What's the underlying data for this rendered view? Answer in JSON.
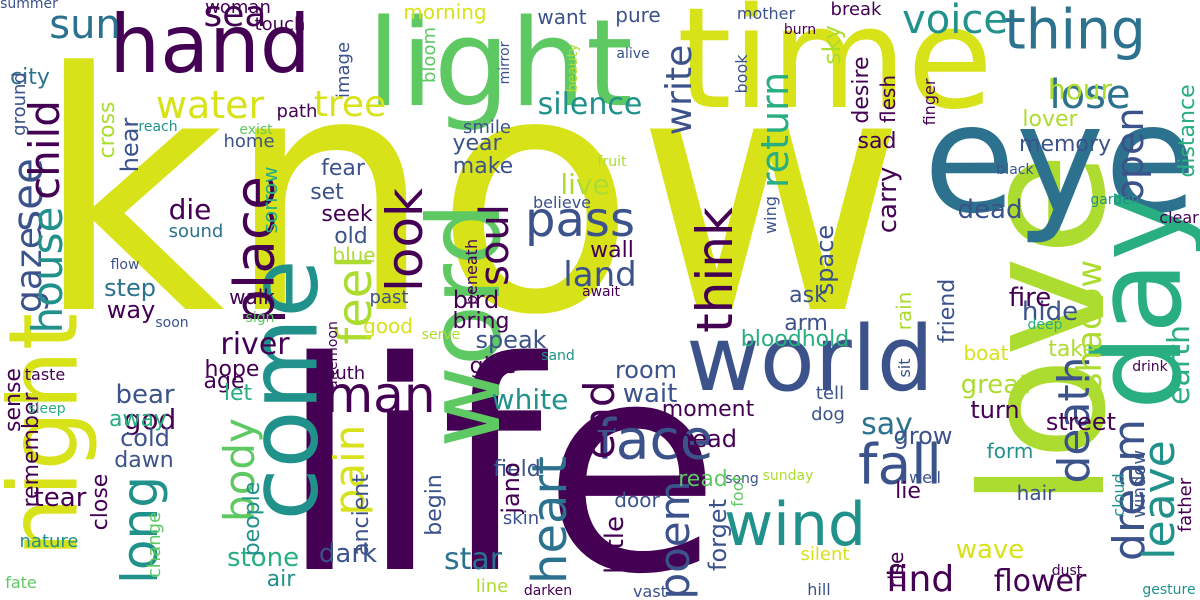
{
  "cloud": {
    "background": "#ffffff",
    "palette": {
      "dark_purple": "#440154",
      "indigo": "#3b528b",
      "teal_blue": "#2c728e",
      "teal": "#21918c",
      "green_teal": "#28ae80",
      "green": "#5ec962",
      "lime": "#addc30",
      "yellow": "#d8e219"
    },
    "words": [
      {
        "text": "know",
        "color": "#d8e219",
        "vertical": false
      },
      {
        "text": "life",
        "color": "#440154",
        "vertical": false
      },
      {
        "text": "love",
        "color": "#addc30",
        "vertical": true
      },
      {
        "text": "time",
        "color": "#d8e219",
        "vertical": false
      },
      {
        "text": "light",
        "color": "#5ec962",
        "vertical": false
      },
      {
        "text": "hand",
        "color": "#440154",
        "vertical": false
      },
      {
        "text": "eye",
        "color": "#2c728e",
        "vertical": false
      },
      {
        "text": "day",
        "color": "#28ae80",
        "vertical": true
      },
      {
        "text": "word",
        "color": "#5ec962",
        "vertical": true
      },
      {
        "text": "come",
        "color": "#21918c",
        "vertical": true
      },
      {
        "text": "world",
        "color": "#3b528b",
        "vertical": false
      },
      {
        "text": "night",
        "color": "#d8e219",
        "vertical": true
      },
      {
        "text": "thing",
        "color": "#2c728e",
        "vertical": false
      },
      {
        "text": "man",
        "color": "#440154",
        "vertical": false
      },
      {
        "text": "face",
        "color": "#3b528b",
        "vertical": false
      },
      {
        "text": "wind",
        "color": "#21918c",
        "vertical": false
      },
      {
        "text": "fall",
        "color": "#3b528b",
        "vertical": false
      },
      {
        "text": "find",
        "color": "#440154",
        "vertical": false
      },
      {
        "text": "voice",
        "color": "#21918c",
        "vertical": false
      },
      {
        "text": "water",
        "color": "#d8e219",
        "vertical": false
      },
      {
        "text": "pass",
        "color": "#3b528b",
        "vertical": false
      },
      {
        "text": "think",
        "color": "#440154",
        "vertical": true
      },
      {
        "text": "feel",
        "color": "#addc30",
        "vertical": true
      },
      {
        "text": "place",
        "color": "#440154",
        "vertical": true
      },
      {
        "text": "look",
        "color": "#440154",
        "vertical": true
      },
      {
        "text": "sea",
        "color": "#440154",
        "vertical": false
      },
      {
        "text": "sun",
        "color": "#2c728e",
        "vertical": false
      },
      {
        "text": "tree",
        "color": "#d8e219",
        "vertical": false
      },
      {
        "text": "see",
        "color": "#3b528b",
        "vertical": true
      },
      {
        "text": "gaze",
        "color": "#3b528b",
        "vertical": true
      },
      {
        "text": "child",
        "color": "#440154",
        "vertical": true
      },
      {
        "text": "house",
        "color": "#21918c",
        "vertical": true
      },
      {
        "text": "long",
        "color": "#21918c",
        "vertical": true
      },
      {
        "text": "body",
        "color": "#5ec962",
        "vertical": true
      },
      {
        "text": "pain",
        "color": "#d8e219",
        "vertical": true
      },
      {
        "text": "heart",
        "color": "#2c728e",
        "vertical": true
      },
      {
        "text": "end",
        "color": "#440154",
        "vertical": true
      },
      {
        "text": "poem",
        "color": "#3b528b",
        "vertical": true
      },
      {
        "text": "soul",
        "color": "#440154",
        "vertical": true
      },
      {
        "text": "lose",
        "color": "#2c728e",
        "vertical": false
      },
      {
        "text": "return",
        "color": "#28ae80",
        "vertical": true
      },
      {
        "text": "write",
        "color": "#3b528b",
        "vertical": true
      },
      {
        "text": "silence",
        "color": "#21918c",
        "vertical": false
      },
      {
        "text": "open",
        "color": "#3b528b",
        "vertical": true
      },
      {
        "text": "dream",
        "color": "#3b528b",
        "vertical": true
      },
      {
        "text": "death",
        "color": "#3b528b",
        "vertical": true
      },
      {
        "text": "leave",
        "color": "#21918c",
        "vertical": true
      },
      {
        "text": "shadow",
        "color": "#addc30",
        "vertical": true
      },
      {
        "text": "earth",
        "color": "#28ae80",
        "vertical": true
      },
      {
        "text": "land",
        "color": "#3b528b",
        "vertical": false
      },
      {
        "text": "live",
        "color": "#addc30",
        "vertical": false
      },
      {
        "text": "dead",
        "color": "#3b528b",
        "vertical": false
      },
      {
        "text": "hour",
        "color": "#addc30",
        "vertical": false
      },
      {
        "text": "lover",
        "color": "#addc30",
        "vertical": false
      },
      {
        "text": "memory",
        "color": "#3b528b",
        "vertical": false
      },
      {
        "text": "river",
        "color": "#440154",
        "vertical": false
      },
      {
        "text": "star",
        "color": "#2c728e",
        "vertical": false
      },
      {
        "text": "white",
        "color": "#21918c",
        "vertical": false
      },
      {
        "text": "great",
        "color": "#addc30",
        "vertical": false
      },
      {
        "text": "say",
        "color": "#2c728e",
        "vertical": false
      },
      {
        "text": "flower",
        "color": "#440154",
        "vertical": false
      },
      {
        "text": "bloodhold",
        "color": "#28ae80",
        "vertical": false
      },
      {
        "text": "god",
        "color": "#440154",
        "vertical": false
      },
      {
        "text": "bear",
        "color": "#3b528b",
        "vertical": false
      },
      {
        "text": "die",
        "color": "#440154",
        "vertical": false
      },
      {
        "text": "fear",
        "color": "#3b528b",
        "vertical": false
      },
      {
        "text": "seek",
        "color": "#440154",
        "vertical": false
      },
      {
        "text": "set",
        "color": "#3b528b",
        "vertical": false
      },
      {
        "text": "old",
        "color": "#3b528b",
        "vertical": false
      },
      {
        "text": "blue",
        "color": "#addc30",
        "vertical": false
      },
      {
        "text": "make",
        "color": "#3b528b",
        "vertical": false
      },
      {
        "text": "year",
        "color": "#3b528b",
        "vertical": false
      },
      {
        "text": "wall",
        "color": "#440154",
        "vertical": false
      },
      {
        "text": "bird",
        "color": "#440154",
        "vertical": false
      },
      {
        "text": "bring",
        "color": "#440154",
        "vertical": false
      },
      {
        "text": "speak",
        "color": "#3b528b",
        "vertical": false
      },
      {
        "text": "give",
        "color": "#440154",
        "vertical": false
      },
      {
        "text": "room",
        "color": "#3b528b",
        "vertical": false
      },
      {
        "text": "wait",
        "color": "#3b528b",
        "vertical": false
      },
      {
        "text": "moment",
        "color": "#440154",
        "vertical": false
      },
      {
        "text": "street",
        "color": "#440154",
        "vertical": false
      },
      {
        "text": "turn",
        "color": "#440154",
        "vertical": false
      },
      {
        "text": "fire",
        "color": "#440154",
        "vertical": false
      },
      {
        "text": "hide",
        "color": "#3b528b",
        "vertical": false
      },
      {
        "text": "take",
        "color": "#addc30",
        "vertical": false
      },
      {
        "text": "boat",
        "color": "#d8e219",
        "vertical": false
      },
      {
        "text": "wave",
        "color": "#d8e219",
        "vertical": false
      },
      {
        "text": "form",
        "color": "#21918c",
        "vertical": false
      },
      {
        "text": "grow",
        "color": "#3b528b",
        "vertical": false
      },
      {
        "text": "lie",
        "color": "#440154",
        "vertical": false
      },
      {
        "text": "head",
        "color": "#440154",
        "vertical": false
      },
      {
        "text": "field",
        "color": "#3b528b",
        "vertical": false
      },
      {
        "text": "read",
        "color": "#5ec962",
        "vertical": false
      },
      {
        "text": "hair",
        "color": "#3b528b",
        "vertical": false
      },
      {
        "text": "age",
        "color": "#440154",
        "vertical": false
      },
      {
        "text": "hope",
        "color": "#440154",
        "vertical": false
      },
      {
        "text": "let",
        "color": "#28ae80",
        "vertical": false
      },
      {
        "text": "away",
        "color": "#28ae80",
        "vertical": false
      },
      {
        "text": "cold",
        "color": "#3b528b",
        "vertical": false
      },
      {
        "text": "dawn",
        "color": "#3b528b",
        "vertical": false
      },
      {
        "text": "tear",
        "color": "#440154",
        "vertical": false
      },
      {
        "text": "step",
        "color": "#2c728e",
        "vertical": false
      },
      {
        "text": "way",
        "color": "#440154",
        "vertical": false
      },
      {
        "text": "walk",
        "color": "#440154",
        "vertical": false
      },
      {
        "text": "good",
        "color": "#d8e219",
        "vertical": false
      },
      {
        "text": "past",
        "color": "#3b528b",
        "vertical": false
      },
      {
        "text": "dark",
        "color": "#3b528b",
        "vertical": false
      },
      {
        "text": "stone",
        "color": "#28ae80",
        "vertical": false
      },
      {
        "text": "air",
        "color": "#21918c",
        "vertical": false
      },
      {
        "text": "woman",
        "color": "#440154",
        "vertical": false
      },
      {
        "text": "touch",
        "color": "#440154",
        "vertical": false
      },
      {
        "text": "morning",
        "color": "#d8e219",
        "vertical": false
      },
      {
        "text": "want",
        "color": "#3b528b",
        "vertical": false
      },
      {
        "text": "pure",
        "color": "#3b528b",
        "vertical": false
      },
      {
        "text": "mother",
        "color": "#3b528b",
        "vertical": false
      },
      {
        "text": "break",
        "color": "#440154",
        "vertical": false
      },
      {
        "text": "smile",
        "color": "#3b528b",
        "vertical": false
      },
      {
        "text": "path",
        "color": "#440154",
        "vertical": false
      },
      {
        "text": "home",
        "color": "#3b528b",
        "vertical": false
      },
      {
        "text": "city",
        "color": "#2c728e",
        "vertical": false
      },
      {
        "text": "sound",
        "color": "#2c728e",
        "vertical": false
      },
      {
        "text": "sad",
        "color": "#440154",
        "vertical": false
      },
      {
        "text": "carry",
        "color": "#440154",
        "vertical": true
      },
      {
        "text": "space",
        "color": "#3b528b",
        "vertical": true
      },
      {
        "text": "ask",
        "color": "#3b528b",
        "vertical": false
      },
      {
        "text": "arm",
        "color": "#3b528b",
        "vertical": false
      },
      {
        "text": "sky",
        "color": "#addc30",
        "vertical": true
      },
      {
        "text": "desire",
        "color": "#440154",
        "vertical": true
      },
      {
        "text": "flesh",
        "color": "#440154",
        "vertical": true
      },
      {
        "text": "finger",
        "color": "#440154",
        "vertical": true
      },
      {
        "text": "wing",
        "color": "#3b528b",
        "vertical": true
      },
      {
        "text": "rain",
        "color": "#addc30",
        "vertical": true
      },
      {
        "text": "friend",
        "color": "#3b528b",
        "vertical": true
      },
      {
        "text": "clear",
        "color": "#440154",
        "vertical": false
      },
      {
        "text": "black",
        "color": "#3b528b",
        "vertical": false
      },
      {
        "text": "garden",
        "color": "#21918c",
        "vertical": false
      },
      {
        "text": "drink",
        "color": "#440154",
        "vertical": false
      },
      {
        "text": "deep",
        "color": "#28ae80",
        "vertical": false
      },
      {
        "text": "distance",
        "color": "#28ae80",
        "vertical": true
      },
      {
        "text": "window",
        "color": "#3b528b",
        "vertical": true
      },
      {
        "text": "father",
        "color": "#440154",
        "vertical": true
      },
      {
        "text": "gesture",
        "color": "#21918c",
        "vertical": false
      },
      {
        "text": "dust",
        "color": "#440154",
        "vertical": false
      },
      {
        "text": "cloud",
        "color": "#21918c",
        "vertical": true
      },
      {
        "text": "well",
        "color": "#3b528b",
        "vertical": false
      },
      {
        "text": "sunday",
        "color": "#addc30",
        "vertical": false
      },
      {
        "text": "silent",
        "color": "#d8e219",
        "vertical": false
      },
      {
        "text": "hill",
        "color": "#3b528b",
        "vertical": false
      },
      {
        "text": "rise",
        "color": "#440154",
        "vertical": true
      },
      {
        "text": "dog",
        "color": "#3b528b",
        "vertical": false
      },
      {
        "text": "tell",
        "color": "#3b528b",
        "vertical": false
      },
      {
        "text": "sit",
        "color": "#3b528b",
        "vertical": true
      },
      {
        "text": "song",
        "color": "#3b528b",
        "vertical": false
      },
      {
        "text": "foot",
        "color": "#5ec962",
        "vertical": true
      },
      {
        "text": "forget",
        "color": "#3b528b",
        "vertical": true
      },
      {
        "text": "door",
        "color": "#3b528b",
        "vertical": false
      },
      {
        "text": "little",
        "color": "#440154",
        "vertical": true
      },
      {
        "text": "skin",
        "color": "#3b528b",
        "vertical": false
      },
      {
        "text": "jano",
        "color": "#440154",
        "vertical": true
      },
      {
        "text": "begin",
        "color": "#3b528b",
        "vertical": true
      },
      {
        "text": "ancient",
        "color": "#3b528b",
        "vertical": true
      },
      {
        "text": "people",
        "color": "#21918c",
        "vertical": true
      },
      {
        "text": "close",
        "color": "#440154",
        "vertical": true
      },
      {
        "text": "change",
        "color": "#5ec962",
        "vertical": true
      },
      {
        "text": "nature",
        "color": "#21918c",
        "vertical": false
      },
      {
        "text": "sense",
        "color": "#440154",
        "vertical": true
      },
      {
        "text": "remember",
        "color": "#440154",
        "vertical": true
      },
      {
        "text": "taste",
        "color": "#440154",
        "vertical": false
      },
      {
        "text": "sleep",
        "color": "#28ae80",
        "vertical": false
      },
      {
        "text": "fate",
        "color": "#5ec962",
        "vertical": false
      },
      {
        "text": "summer",
        "color": "#3b528b",
        "vertical": false
      },
      {
        "text": "line",
        "color": "#addc30",
        "vertical": false
      },
      {
        "text": "darken",
        "color": "#440154",
        "vertical": false
      },
      {
        "text": "vast",
        "color": "#3b528b",
        "vertical": false
      },
      {
        "text": "mouth",
        "color": "#440154",
        "vertical": false
      },
      {
        "text": "afternoon",
        "color": "#440154",
        "vertical": true
      },
      {
        "text": "sand",
        "color": "#21918c",
        "vertical": false
      },
      {
        "text": "serve",
        "color": "#addc30",
        "vertical": false
      },
      {
        "text": "beneath",
        "color": "#440154",
        "vertical": true
      },
      {
        "text": "await",
        "color": "#440154",
        "vertical": false
      },
      {
        "text": "believe",
        "color": "#3b528b",
        "vertical": false
      },
      {
        "text": "fruit",
        "color": "#addc30",
        "vertical": false
      },
      {
        "text": "reach",
        "color": "#21918c",
        "vertical": false
      },
      {
        "text": "exist",
        "color": "#5ec962",
        "vertical": false
      },
      {
        "text": "cross",
        "color": "#addc30",
        "vertical": true
      },
      {
        "text": "hear",
        "color": "#3b528b",
        "vertical": true
      },
      {
        "text": "ground",
        "color": "#3b528b",
        "vertical": true
      },
      {
        "text": "image",
        "color": "#3b528b",
        "vertical": true
      },
      {
        "text": "bloom",
        "color": "#5ec962",
        "vertical": true
      },
      {
        "text": "mirror",
        "color": "#3b528b",
        "vertical": true
      },
      {
        "text": "alive",
        "color": "#3b528b",
        "vertical": false
      },
      {
        "text": "beauty",
        "color": "#addc30",
        "vertical": true
      },
      {
        "text": "book",
        "color": "#3b528b",
        "vertical": true
      },
      {
        "text": "burn",
        "color": "#440154",
        "vertical": false
      },
      {
        "text": "sorrow",
        "color": "#28ae80",
        "vertical": true
      },
      {
        "text": "sign",
        "color": "#5ec962",
        "vertical": false
      },
      {
        "text": "soon",
        "color": "#3b528b",
        "vertical": false
      },
      {
        "text": "flow",
        "color": "#3b528b",
        "vertical": false
      }
    ]
  }
}
